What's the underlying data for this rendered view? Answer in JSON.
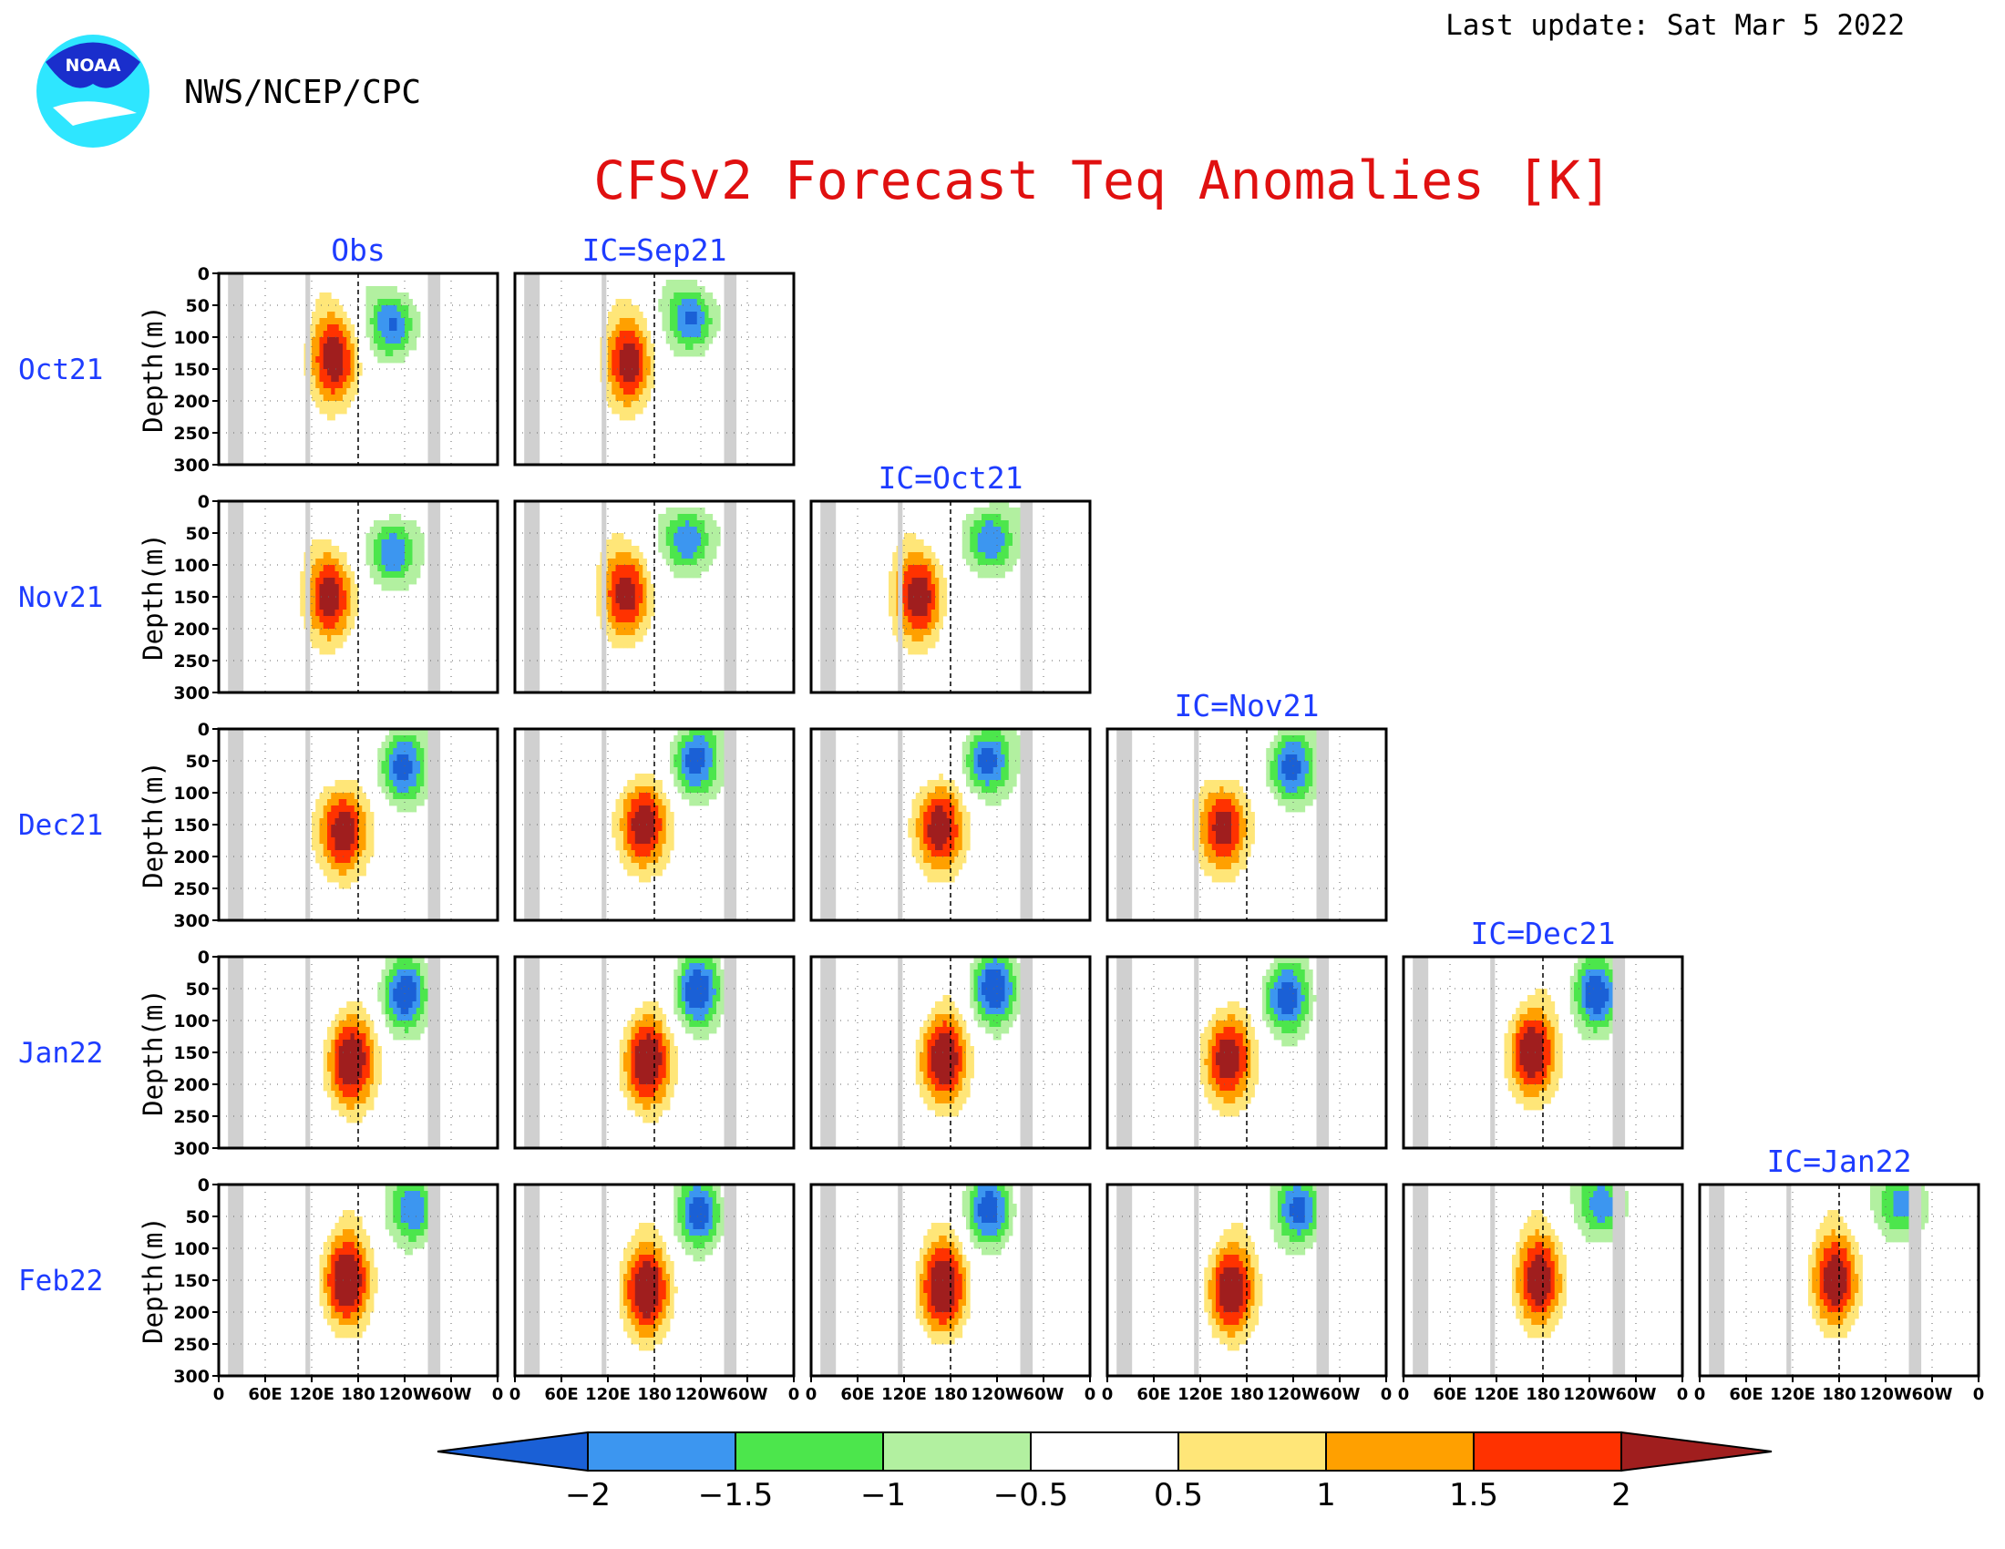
{
  "header": {
    "agency": "NWS/NCEP/CPC",
    "last_update": "Last update: Sat Mar 5 2022",
    "logo_text": "NOAA"
  },
  "chart_data": {
    "type": "heatmap",
    "title": "CFSv2 Forecast Teq Anomalies [K]",
    "ylabel": "Depth(m)",
    "y_ticks": [
      "0",
      "50",
      "100",
      "150",
      "200",
      "250",
      "300"
    ],
    "ylim": [
      300,
      0
    ],
    "x_ticks": [
      "0",
      "60E",
      "120E",
      "180",
      "120W",
      "60W",
      "0"
    ],
    "xlim": [
      0,
      360
    ],
    "columns": [
      "Obs",
      "IC=Sep21",
      "IC=Oct21",
      "IC=Nov21",
      "IC=Dec21",
      "IC=Jan22"
    ],
    "rows": [
      "Oct21",
      "Nov21",
      "Dec21",
      "Jan22",
      "Feb22"
    ],
    "colorbar": {
      "labels": [
        "−2",
        "−1.5",
        "−1",
        "−0.5",
        "0.5",
        "1",
        "1.5",
        "2"
      ],
      "bin_colors": [
        "#1a60d6",
        "#3c96f0",
        "#4ce64c",
        "#b2f0a0",
        "#ffffff",
        "#ffe678",
        "#ffa000",
        "#ff3200",
        "#a01e1e"
      ],
      "bounds": [
        -2,
        -1.5,
        -1,
        -0.5,
        0.5,
        1,
        1.5,
        2
      ]
    },
    "land_mask_color": "#d0d0d0",
    "land_mask_lon": [
      [
        12,
        32
      ],
      [
        112,
        118
      ],
      [
        270,
        286
      ]
    ],
    "dateline_lon": 180,
    "panels": [
      {
        "row": 0,
        "col": 0,
        "warm": {
          "lon": 150,
          "depth": 135,
          "amp": 2.4
        },
        "cold": {
          "lon": 225,
          "depth": 80,
          "amp": -2.2
        }
      },
      {
        "row": 0,
        "col": 1,
        "warm": {
          "lon": 148,
          "depth": 140,
          "amp": 2.3
        },
        "cold": {
          "lon": 228,
          "depth": 70,
          "amp": -2.3
        }
      },
      {
        "row": 1,
        "col": 0,
        "warm": {
          "lon": 145,
          "depth": 150,
          "amp": 2.4
        },
        "cold": {
          "lon": 225,
          "depth": 80,
          "amp": -2.2
        }
      },
      {
        "row": 1,
        "col": 1,
        "warm": {
          "lon": 145,
          "depth": 145,
          "amp": 2.4
        },
        "cold": {
          "lon": 222,
          "depth": 60,
          "amp": -2.2
        }
      },
      {
        "row": 1,
        "col": 2,
        "warm": {
          "lon": 140,
          "depth": 150,
          "amp": 2.5
        },
        "cold": {
          "lon": 230,
          "depth": 60,
          "amp": -2.2
        }
      },
      {
        "row": 2,
        "col": 0,
        "warm": {
          "lon": 160,
          "depth": 160,
          "amp": 2.6
        },
        "cold": {
          "lon": 235,
          "depth": 60,
          "amp": -2.3
        }
      },
      {
        "row": 2,
        "col": 1,
        "warm": {
          "lon": 165,
          "depth": 150,
          "amp": 2.6
        },
        "cold": {
          "lon": 230,
          "depth": 50,
          "amp": -2.4
        }
      },
      {
        "row": 2,
        "col": 2,
        "warm": {
          "lon": 165,
          "depth": 155,
          "amp": 2.6
        },
        "cold": {
          "lon": 225,
          "depth": 50,
          "amp": -2.4
        }
      },
      {
        "row": 2,
        "col": 3,
        "warm": {
          "lon": 150,
          "depth": 155,
          "amp": 2.5
        },
        "cold": {
          "lon": 235,
          "depth": 60,
          "amp": -2.3
        }
      },
      {
        "row": 3,
        "col": 0,
        "warm": {
          "lon": 170,
          "depth": 165,
          "amp": 2.7
        },
        "cold": {
          "lon": 240,
          "depth": 60,
          "amp": -2.3
        }
      },
      {
        "row": 3,
        "col": 1,
        "warm": {
          "lon": 170,
          "depth": 165,
          "amp": 2.7
        },
        "cold": {
          "lon": 235,
          "depth": 55,
          "amp": -2.4
        }
      },
      {
        "row": 3,
        "col": 2,
        "warm": {
          "lon": 170,
          "depth": 160,
          "amp": 2.7
        },
        "cold": {
          "lon": 235,
          "depth": 50,
          "amp": -2.4
        }
      },
      {
        "row": 3,
        "col": 3,
        "warm": {
          "lon": 155,
          "depth": 160,
          "amp": 2.6
        },
        "cold": {
          "lon": 230,
          "depth": 65,
          "amp": -2.3
        }
      },
      {
        "row": 3,
        "col": 4,
        "warm": {
          "lon": 165,
          "depth": 150,
          "amp": 2.6
        },
        "cold": {
          "lon": 250,
          "depth": 60,
          "amp": -2.3
        }
      },
      {
        "row": 4,
        "col": 0,
        "warm": {
          "lon": 165,
          "depth": 150,
          "amp": 2.7
        },
        "cold": {
          "lon": 255,
          "depth": 40,
          "amp": -2.0
        }
      },
      {
        "row": 4,
        "col": 1,
        "warm": {
          "lon": 170,
          "depth": 165,
          "amp": 2.7
        },
        "cold": {
          "lon": 240,
          "depth": 45,
          "amp": -2.2
        }
      },
      {
        "row": 4,
        "col": 2,
        "warm": {
          "lon": 170,
          "depth": 160,
          "amp": 2.7
        },
        "cold": {
          "lon": 230,
          "depth": 40,
          "amp": -2.2
        }
      },
      {
        "row": 4,
        "col": 3,
        "warm": {
          "lon": 160,
          "depth": 165,
          "amp": 2.6
        },
        "cold": {
          "lon": 250,
          "depth": 40,
          "amp": -2.2
        }
      },
      {
        "row": 4,
        "col": 4,
        "warm": {
          "lon": 175,
          "depth": 150,
          "amp": 2.5
        },
        "cold": {
          "lon": 260,
          "depth": 30,
          "amp": -2.0
        }
      },
      {
        "row": 4,
        "col": 5,
        "warm": {
          "lon": 175,
          "depth": 150,
          "amp": 2.5
        },
        "cold": {
          "lon": 265,
          "depth": 30,
          "amp": -2.0
        }
      }
    ]
  }
}
